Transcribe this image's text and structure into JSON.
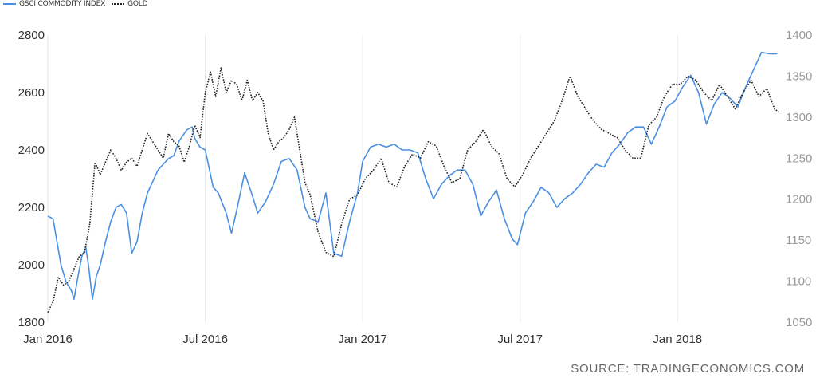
{
  "legend": {
    "series1": "GSCI COMMODITY INDEX",
    "series2": "GOLD"
  },
  "source": "SOURCE: TRADINGECONOMICS.COM",
  "colors": {
    "series1": "#4a90e2",
    "series2": "#222222",
    "axis_text_left": "#333333",
    "axis_text_right": "#999999",
    "grid": "#e6e6e6"
  },
  "chart_data": {
    "type": "line",
    "x_tick_labels": [
      "Jan 2016",
      "Jul 2016",
      "Jan 2017",
      "Jul 2017",
      "Jan 2018"
    ],
    "x_tick_values": [
      0,
      6,
      12,
      18,
      24
    ],
    "xlim": [
      0,
      28
    ],
    "y_left": {
      "ticks": [
        "2800",
        "2600",
        "2400",
        "2200",
        "2000",
        "1800"
      ],
      "lim": [
        1800,
        2800
      ]
    },
    "y_right": {
      "ticks": [
        "1400",
        "1350",
        "1300",
        "1250",
        "1200",
        "1150",
        "1100",
        "1050"
      ],
      "lim": [
        1050,
        1400
      ]
    },
    "grid": "vertical",
    "legend_position": "top-left",
    "series": [
      {
        "name": "GSCI COMMODITY INDEX",
        "axis": "left",
        "style": "solid",
        "x": [
          0,
          0.2,
          0.35,
          0.5,
          0.7,
          0.9,
          1.0,
          1.15,
          1.3,
          1.45,
          1.55,
          1.7,
          1.85,
          2.0,
          2.2,
          2.4,
          2.6,
          2.8,
          3.0,
          3.2,
          3.4,
          3.6,
          3.8,
          4.0,
          4.2,
          4.4,
          4.6,
          4.8,
          5.0,
          5.3,
          5.5,
          5.6,
          5.8,
          6.0,
          6.3,
          6.5,
          6.8,
          7.0,
          7.2,
          7.5,
          7.8,
          8.0,
          8.3,
          8.6,
          8.9,
          9.2,
          9.5,
          9.8,
          10.0,
          10.3,
          10.6,
          10.9,
          11.2,
          11.5,
          11.8,
          12.0,
          12.3,
          12.6,
          12.9,
          13.2,
          13.5,
          13.8,
          14.1,
          14.4,
          14.7,
          15.0,
          15.3,
          15.6,
          15.9,
          16.2,
          16.5,
          16.8,
          17.1,
          17.4,
          17.7,
          17.9,
          18.2,
          18.5,
          18.8,
          19.1,
          19.4,
          19.7,
          20.0,
          20.3,
          20.6,
          20.9,
          21.2,
          21.5,
          21.8,
          22.1,
          22.4,
          22.7,
          23.0,
          23.3,
          23.6,
          23.9,
          24.2,
          24.5,
          24.8,
          25.1,
          25.4,
          25.7,
          26.0,
          26.3,
          26.6,
          26.9,
          27.2,
          27.5,
          27.8
        ],
        "values": [
          2170,
          2160,
          2080,
          2000,
          1940,
          1910,
          1880,
          1960,
          2030,
          2060,
          2000,
          1880,
          1960,
          2000,
          2080,
          2150,
          2200,
          2210,
          2180,
          2040,
          2080,
          2180,
          2250,
          2290,
          2330,
          2350,
          2370,
          2380,
          2430,
          2470,
          2480,
          2440,
          2410,
          2400,
          2270,
          2250,
          2180,
          2110,
          2190,
          2320,
          2240,
          2180,
          2220,
          2280,
          2360,
          2370,
          2330,
          2200,
          2160,
          2150,
          2250,
          2040,
          2030,
          2150,
          2250,
          2360,
          2410,
          2420,
          2410,
          2420,
          2400,
          2400,
          2390,
          2300,
          2230,
          2280,
          2310,
          2330,
          2330,
          2280,
          2170,
          2220,
          2260,
          2160,
          2090,
          2070,
          2180,
          2220,
          2270,
          2250,
          2200,
          2230,
          2250,
          2280,
          2320,
          2350,
          2340,
          2390,
          2420,
          2460,
          2480,
          2480,
          2420,
          2480,
          2550,
          2570,
          2620,
          2660,
          2600,
          2490,
          2560,
          2600,
          2580,
          2550,
          2620,
          2680,
          2740,
          2735,
          2735
        ]
      },
      {
        "name": "GOLD",
        "axis": "right",
        "style": "dotted",
        "x": [
          0,
          0.2,
          0.4,
          0.6,
          0.8,
          1.0,
          1.2,
          1.4,
          1.6,
          1.8,
          2.0,
          2.2,
          2.4,
          2.6,
          2.8,
          3.0,
          3.2,
          3.4,
          3.6,
          3.8,
          4.0,
          4.2,
          4.4,
          4.6,
          4.8,
          5.0,
          5.2,
          5.4,
          5.6,
          5.8,
          6.0,
          6.2,
          6.4,
          6.6,
          6.8,
          7.0,
          7.2,
          7.4,
          7.6,
          7.8,
          8.0,
          8.2,
          8.4,
          8.6,
          8.8,
          9.0,
          9.2,
          9.4,
          9.6,
          9.8,
          10.0,
          10.3,
          10.6,
          10.9,
          11.2,
          11.5,
          11.8,
          12.1,
          12.4,
          12.7,
          13.0,
          13.3,
          13.6,
          13.9,
          14.2,
          14.5,
          14.8,
          15.1,
          15.4,
          15.7,
          16.0,
          16.3,
          16.6,
          16.9,
          17.2,
          17.5,
          17.8,
          18.1,
          18.4,
          18.7,
          19.0,
          19.3,
          19.6,
          19.9,
          20.2,
          20.5,
          20.8,
          21.1,
          21.4,
          21.7,
          22.0,
          22.3,
          22.6,
          22.9,
          23.2,
          23.5,
          23.8,
          24.1,
          24.4,
          24.7,
          25.0,
          25.3,
          25.6,
          25.9,
          26.2,
          26.5,
          26.8,
          27.1,
          27.4,
          27.7,
          27.9
        ],
        "values": [
          1062,
          1075,
          1105,
          1095,
          1100,
          1115,
          1130,
          1135,
          1170,
          1245,
          1230,
          1245,
          1260,
          1250,
          1235,
          1245,
          1250,
          1240,
          1260,
          1280,
          1270,
          1260,
          1250,
          1280,
          1270,
          1265,
          1245,
          1265,
          1290,
          1275,
          1330,
          1355,
          1325,
          1360,
          1330,
          1345,
          1340,
          1320,
          1345,
          1320,
          1330,
          1320,
          1280,
          1260,
          1270,
          1275,
          1285,
          1300,
          1260,
          1220,
          1205,
          1160,
          1135,
          1130,
          1170,
          1200,
          1205,
          1225,
          1235,
          1250,
          1220,
          1215,
          1240,
          1255,
          1250,
          1270,
          1265,
          1240,
          1220,
          1225,
          1260,
          1270,
          1285,
          1265,
          1255,
          1225,
          1215,
          1230,
          1250,
          1265,
          1280,
          1295,
          1320,
          1350,
          1325,
          1310,
          1295,
          1285,
          1280,
          1275,
          1260,
          1250,
          1250,
          1290,
          1300,
          1325,
          1340,
          1340,
          1350,
          1345,
          1330,
          1320,
          1340,
          1325,
          1310,
          1330,
          1345,
          1325,
          1335,
          1310,
          1305
        ]
      }
    ]
  }
}
